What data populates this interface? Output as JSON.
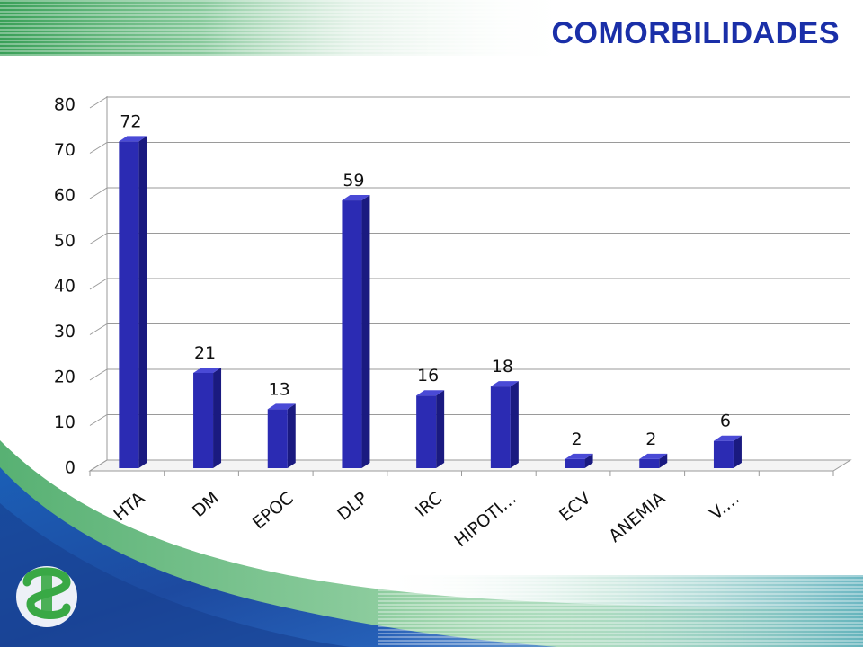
{
  "slide": {
    "title": "COMORBILIDADES",
    "colors": {
      "title": "#1a2fa8",
      "bar_front": "#2b2bb3",
      "bar_side": "#1a1a80",
      "bar_top": "#4a4ad6",
      "grid": "#9a9a9a",
      "stripe_green": "#2e9a4e",
      "wave_blue": "#1f4fa8",
      "logo_green": "#39a845"
    }
  },
  "chart_data": {
    "type": "bar",
    "title": "",
    "xlabel": "",
    "ylabel": "",
    "categories": [
      "HTA",
      "DM",
      "EPOC",
      "DLP",
      "IRC",
      "HIPOTI…",
      "ECV",
      "ANEMIA",
      "V.…"
    ],
    "values": [
      72,
      21,
      13,
      59,
      16,
      18,
      2,
      2,
      6
    ],
    "data_labels": [
      "72",
      "21",
      "13",
      "59",
      "16",
      "18",
      "2",
      "2",
      "6"
    ],
    "ylim": [
      0,
      80
    ],
    "yticks": [
      0,
      10,
      20,
      30,
      40,
      50,
      60,
      70,
      80
    ],
    "ytick_labels": [
      "0",
      "10",
      "20",
      "30",
      "40",
      "50",
      "60",
      "70",
      "80"
    ],
    "grid": true,
    "style": "3d-column",
    "legend": "none"
  }
}
